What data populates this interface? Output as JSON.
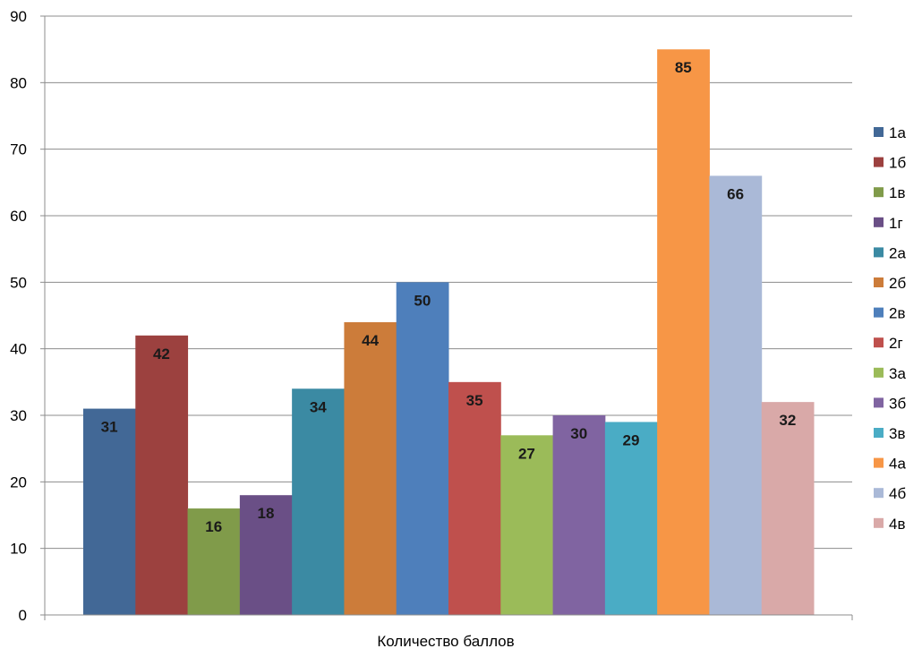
{
  "chart_data": {
    "type": "bar",
    "title": "",
    "xlabel": "Количество баллов",
    "ylabel": "",
    "ylim": [
      0,
      90
    ],
    "yticks": [
      0,
      10,
      20,
      30,
      40,
      50,
      60,
      70,
      80,
      90
    ],
    "grid": true,
    "legend_position": "right",
    "data_labels": true,
    "categories": [
      "Количество баллов"
    ],
    "series": [
      {
        "name": "1а",
        "values": [
          31
        ],
        "color": "#426896"
      },
      {
        "name": "1б",
        "values": [
          42
        ],
        "color": "#9c413f"
      },
      {
        "name": "1в",
        "values": [
          16
        ],
        "color": "#809b4a"
      },
      {
        "name": "1г",
        "values": [
          18
        ],
        "color": "#6a4f86"
      },
      {
        "name": "2а",
        "values": [
          34
        ],
        "color": "#3b8aa3"
      },
      {
        "name": "2б",
        "values": [
          44
        ],
        "color": "#cc7c3a"
      },
      {
        "name": "2в",
        "values": [
          50
        ],
        "color": "#4e7fbb"
      },
      {
        "name": "2г",
        "values": [
          35
        ],
        "color": "#bf504d"
      },
      {
        "name": "3а",
        "values": [
          27
        ],
        "color": "#9bbb59"
      },
      {
        "name": "3б",
        "values": [
          30
        ],
        "color": "#8064a1"
      },
      {
        "name": "3в",
        "values": [
          29
        ],
        "color": "#4aacc5"
      },
      {
        "name": "4а",
        "values": [
          85
        ],
        "color": "#f79646"
      },
      {
        "name": "4б",
        "values": [
          66
        ],
        "color": "#aab9d7"
      },
      {
        "name": "4в",
        "values": [
          32
        ],
        "color": "#d9a9a8"
      }
    ]
  }
}
